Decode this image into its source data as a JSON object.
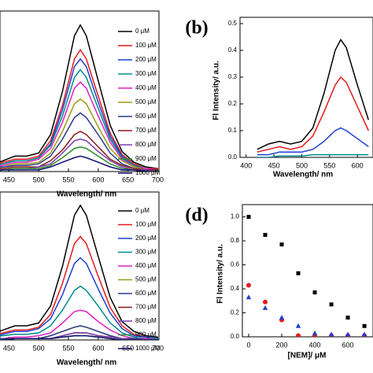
{
  "chart_data": [
    {
      "type": "line",
      "xlabel": "Wavelength/ nm",
      "x": [
        420,
        440,
        460,
        480,
        500,
        520,
        540,
        560,
        570,
        580,
        600,
        620,
        640,
        660,
        680,
        700
      ],
      "xlim": [
        435,
        702
      ],
      "xticks": [
        450,
        500,
        550,
        600,
        650,
        700
      ],
      "ylim": [
        0,
        1
      ],
      "series": [
        {
          "name": "0 μM",
          "color": "#000000",
          "values": [
            0.04,
            0.07,
            0.1,
            0.1,
            0.12,
            0.24,
            0.52,
            0.88,
            0.95,
            0.88,
            0.59,
            0.3,
            0.13,
            0.06,
            0.03,
            0.02
          ]
        },
        {
          "name": "100 μM",
          "color": "#e41a1c",
          "values": [
            0.03,
            0.06,
            0.08,
            0.08,
            0.1,
            0.2,
            0.43,
            0.73,
            0.79,
            0.73,
            0.49,
            0.25,
            0.11,
            0.05,
            0.02,
            0.02
          ]
        },
        {
          "name": "200 μM",
          "color": "#1f3fd0",
          "values": [
            0.03,
            0.05,
            0.07,
            0.07,
            0.09,
            0.18,
            0.4,
            0.68,
            0.73,
            0.68,
            0.45,
            0.23,
            0.1,
            0.04,
            0.02,
            0.01
          ]
        },
        {
          "name": "300 μM",
          "color": "#008b8b",
          "values": [
            0.03,
            0.05,
            0.07,
            0.07,
            0.09,
            0.17,
            0.36,
            0.61,
            0.66,
            0.61,
            0.41,
            0.21,
            0.09,
            0.04,
            0.02,
            0.01
          ]
        },
        {
          "name": "400 μM",
          "color": "#e020c0",
          "values": [
            0.02,
            0.04,
            0.06,
            0.06,
            0.08,
            0.15,
            0.32,
            0.54,
            0.58,
            0.54,
            0.36,
            0.19,
            0.08,
            0.03,
            0.02,
            0.01
          ]
        },
        {
          "name": "500 μM",
          "color": "#9a9a10",
          "values": [
            0.02,
            0.03,
            0.05,
            0.05,
            0.06,
            0.12,
            0.26,
            0.44,
            0.47,
            0.44,
            0.29,
            0.15,
            0.07,
            0.03,
            0.01,
            0.01
          ]
        },
        {
          "name": "600 μM",
          "color": "#2b3a8a",
          "values": [
            0.02,
            0.03,
            0.04,
            0.04,
            0.05,
            0.1,
            0.21,
            0.35,
            0.38,
            0.35,
            0.24,
            0.12,
            0.05,
            0.02,
            0.01,
            0.01
          ]
        },
        {
          "name": "700 μM",
          "color": "#8b1a1a",
          "values": [
            0.01,
            0.02,
            0.03,
            0.03,
            0.03,
            0.07,
            0.14,
            0.24,
            0.26,
            0.24,
            0.16,
            0.08,
            0.04,
            0.02,
            0.01,
            0.01
          ]
        },
        {
          "name": "800 μM",
          "color": "#7b3fb0",
          "values": [
            0.01,
            0.01,
            0.02,
            0.02,
            0.03,
            0.05,
            0.12,
            0.2,
            0.21,
            0.2,
            0.13,
            0.07,
            0.03,
            0.01,
            0.01,
            0.0
          ]
        },
        {
          "name": "900 μM",
          "color": "#2e8b2e",
          "values": [
            0.01,
            0.01,
            0.02,
            0.02,
            0.02,
            0.04,
            0.09,
            0.15,
            0.16,
            0.15,
            0.1,
            0.05,
            0.02,
            0.01,
            0.0,
            0.0
          ]
        },
        {
          "name": "1000 μM",
          "color": "#10106e",
          "values": [
            0.0,
            0.01,
            0.01,
            0.01,
            0.01,
            0.03,
            0.06,
            0.09,
            0.1,
            0.09,
            0.06,
            0.03,
            0.01,
            0.01,
            0.0,
            0.0
          ]
        }
      ]
    },
    {
      "type": "line",
      "title": "(b)",
      "xlabel": "Wavelength/ nm",
      "ylabel": "Fl Intensity/ a.u.",
      "x": [
        420,
        440,
        460,
        480,
        500,
        520,
        540,
        560,
        570,
        580,
        600,
        620
      ],
      "xlim": [
        389,
        628
      ],
      "xticks": [
        400,
        450,
        500,
        550,
        600
      ],
      "ylim": [
        0,
        0.5
      ],
      "yticks": [
        {
          "value": 0,
          "label": "0.0"
        },
        0.1,
        0.2,
        0.3,
        0.4,
        0.5
      ],
      "series": [
        {
          "color": "#000000",
          "values": [
            0.03,
            0.05,
            0.06,
            0.05,
            0.06,
            0.11,
            0.24,
            0.4,
            0.44,
            0.41,
            0.27,
            0.14
          ]
        },
        {
          "color": "#e41a1c",
          "values": [
            0.02,
            0.03,
            0.04,
            0.03,
            0.04,
            0.08,
            0.17,
            0.27,
            0.3,
            0.28,
            0.19,
            0.1
          ]
        },
        {
          "color": "#1f3fd0",
          "values": [
            0.01,
            0.01,
            0.02,
            0.02,
            0.02,
            0.03,
            0.06,
            0.1,
            0.11,
            0.1,
            0.07,
            0.04
          ]
        },
        {
          "color": "#008b8b",
          "values": [
            0,
            0,
            0.005,
            0.005,
            0.005,
            0.01,
            0.01,
            0.01,
            0.01,
            0.01,
            0.01,
            0.01
          ]
        }
      ]
    },
    {
      "type": "line",
      "xlabel": "Wavelength/ nm",
      "x": [
        420,
        440,
        460,
        480,
        500,
        520,
        540,
        560,
        570,
        580,
        600,
        620,
        640,
        660,
        680,
        700
      ],
      "xlim": [
        435,
        702
      ],
      "xticks": [
        450,
        500,
        550,
        600,
        650,
        700
      ],
      "ylim": [
        0,
        1
      ],
      "series": [
        {
          "name": "0 μM",
          "color": "#000000",
          "values": [
            0.04,
            0.07,
            0.1,
            0.1,
            0.12,
            0.24,
            0.52,
            0.88,
            0.95,
            0.88,
            0.59,
            0.3,
            0.13,
            0.06,
            0.03,
            0.02
          ]
        },
        {
          "name": "100 μM",
          "color": "#e41a1c",
          "values": [
            0.03,
            0.05,
            0.07,
            0.07,
            0.09,
            0.18,
            0.4,
            0.68,
            0.73,
            0.68,
            0.45,
            0.23,
            0.1,
            0.04,
            0.02,
            0.01
          ]
        },
        {
          "name": "200 μM",
          "color": "#1f3fd0",
          "values": [
            0.02,
            0.04,
            0.06,
            0.06,
            0.08,
            0.15,
            0.32,
            0.54,
            0.58,
            0.54,
            0.36,
            0.19,
            0.08,
            0.03,
            0.02,
            0.01
          ]
        },
        {
          "name": "300 μM",
          "color": "#008b8b",
          "values": [
            0.02,
            0.03,
            0.04,
            0.04,
            0.05,
            0.1,
            0.21,
            0.35,
            0.38,
            0.35,
            0.24,
            0.12,
            0.05,
            0.02,
            0.01,
            0.01
          ]
        },
        {
          "name": "400 μM",
          "color": "#e020c0",
          "values": [
            0.01,
            0.01,
            0.02,
            0.02,
            0.03,
            0.05,
            0.12,
            0.2,
            0.21,
            0.2,
            0.13,
            0.07,
            0.03,
            0.01,
            0.01,
            0.0
          ]
        },
        {
          "name": "500 μM",
          "color": "#9a9a10",
          "values": [
            0.0,
            0.01,
            0.01,
            0.01,
            0.01,
            0.03,
            0.06,
            0.09,
            0.1,
            0.09,
            0.06,
            0.03,
            0.01,
            0.01,
            0.0,
            0.0
          ]
        },
        {
          "name": "600 μM",
          "color": "#2b3a8a",
          "values": [
            0.0,
            0.01,
            0.01,
            0.01,
            0.01,
            0.03,
            0.06,
            0.09,
            0.1,
            0.09,
            0.06,
            0.03,
            0.01,
            0.01,
            0.0,
            0.0
          ]
        },
        {
          "name": "700 μM",
          "color": "#8b1a1a",
          "values": [
            0,
            0,
            0.01,
            0.01,
            0.01,
            0.01,
            0.03,
            0.05,
            0.05,
            0.05,
            0.03,
            0.02,
            0.01,
            0,
            0,
            0
          ]
        },
        {
          "name": "800 μM",
          "color": "#7b3fb0",
          "values": [
            0,
            0,
            0.01,
            0.01,
            0.01,
            0.01,
            0.03,
            0.05,
            0.05,
            0.05,
            0.03,
            0.02,
            0.01,
            0,
            0,
            0
          ]
        },
        {
          "name": "900 μM",
          "color": "#2e8b2e",
          "values": [
            0,
            0,
            0.01,
            0.01,
            0.01,
            0.01,
            0.02,
            0.03,
            0.03,
            0.03,
            0.02,
            0.01,
            0,
            0,
            0,
            0
          ]
        },
        {
          "name": "1000 μM",
          "color": "#10106e",
          "values": [
            0,
            0,
            0.01,
            0.01,
            0.01,
            0.01,
            0.02,
            0.03,
            0.03,
            0.03,
            0.02,
            0.01,
            0,
            0,
            0,
            0
          ]
        }
      ]
    },
    {
      "type": "scatter",
      "title": "(d)",
      "xlabel": "[NEM]/ μM",
      "ylabel": "Fl Intensity/ a.u.",
      "x": [
        0,
        100,
        200,
        300,
        400,
        500,
        600,
        700
      ],
      "xlim": [
        -38,
        752
      ],
      "xticks": [
        0,
        200,
        400,
        600
      ],
      "ylim": [
        0,
        1.05
      ],
      "yticks": [
        {
          "value": 0,
          "label": "0.0"
        },
        0.2,
        0.4,
        0.6,
        0.8,
        {
          "value": 1,
          "label": "1.0"
        }
      ],
      "series": [
        {
          "color": "#000000",
          "marker": "square",
          "values": [
            1.0,
            0.85,
            0.77,
            0.53,
            0.37,
            0.27,
            0.16,
            0.09
          ]
        },
        {
          "color": "#e41a1c",
          "marker": "circle",
          "values": [
            0.43,
            0.29,
            0.14,
            0.01,
            0.01,
            0.01,
            0.01,
            0.01
          ]
        },
        {
          "color": "#1f3fd0",
          "marker": "triangle",
          "values": [
            0.33,
            0.24,
            0.16,
            0.09,
            0.03,
            0.02,
            0.02,
            0.02
          ]
        }
      ]
    }
  ]
}
